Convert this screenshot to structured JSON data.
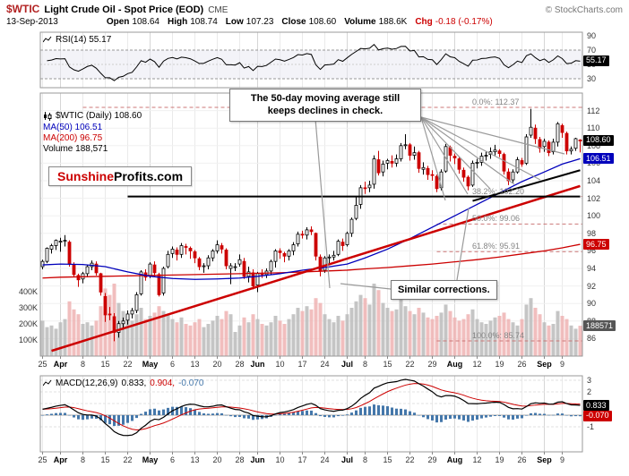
{
  "header": {
    "symbol": "$WTIC",
    "title": "Light Crude Oil - Spot Price (EOD)",
    "exchange": "CME",
    "copyright": "© StockCharts.com",
    "date": "13-Sep-2013",
    "fields": [
      {
        "label": "Open",
        "value": "108.64"
      },
      {
        "label": "High",
        "value": "108.74"
      },
      {
        "label": "Low",
        "value": "107.23"
      },
      {
        "label": "Close",
        "value": "108.60"
      },
      {
        "label": "Volume",
        "value": "188.6K"
      },
      {
        "label": "Chg",
        "value": "-0.18 (-0.17%)",
        "color": "#cc0000"
      }
    ]
  },
  "rsi": {
    "label": "RSI(14) 55.17"
  },
  "main": {
    "legend": {
      "symbol": "$WTIC (Daily) 108.60",
      "ma50": "MA(50) 106.51",
      "ma200": "MA(200) 96.75",
      "volume": "Volume 188,571"
    },
    "watermark": {
      "left": "Sunshine",
      "right": "Profits.com"
    },
    "annotations": {
      "box1_line1": "The 50-day moving average still",
      "box1_line2": "keeps declines in check.",
      "box2": "Similar corrections."
    }
  },
  "macd": {
    "label": "MACD(12,26,9)",
    "v1": "0.833,",
    "v2": "0.904,",
    "v3": "-0.070"
  },
  "colors": {
    "up": "#000000",
    "down": "#cc0000",
    "ma50": "#0000bb",
    "ma200": "#cc0000",
    "histogram": "#4477aa",
    "macd_line": "#000000",
    "signal_line": "#cc0000",
    "tag_close": "#000000",
    "tag_ma50": "#0000bb",
    "tag_ma200": "#cc0000",
    "tag_volume": "#555555",
    "tag_rsi": "#000000",
    "tag_macd": "#000000",
    "tag_hist": "#cc0000"
  },
  "chart_data": {
    "type": "candlestick",
    "symbol": "$WTIC",
    "timeframe": "daily",
    "title": "Light Crude Oil - Spot Price (EOD) CME",
    "price_axis_range": [
      84,
      114
    ],
    "price_ticks": [
      112,
      110,
      108,
      106,
      104,
      102,
      100,
      98,
      96,
      94,
      92,
      90,
      88,
      86
    ],
    "rsi_ticks": [
      90,
      70,
      50,
      30
    ],
    "rsi_band": [
      30,
      70
    ],
    "macd_ticks": [
      3,
      2,
      1,
      0,
      -1
    ],
    "volume_ticks": [
      {
        "label": "400K",
        "v": 400
      },
      {
        "label": "300K",
        "v": 300
      },
      {
        "label": "200K",
        "v": 200
      },
      {
        "label": "100K",
        "v": 100
      }
    ],
    "x_ticks": [
      {
        "i": 0,
        "label": "25"
      },
      {
        "i": 4,
        "label": "Apr"
      },
      {
        "i": 9,
        "label": "8"
      },
      {
        "i": 14,
        "label": "15"
      },
      {
        "i": 19,
        "label": "22"
      },
      {
        "i": 24,
        "label": "May"
      },
      {
        "i": 29,
        "label": "6"
      },
      {
        "i": 34,
        "label": "13"
      },
      {
        "i": 39,
        "label": "20"
      },
      {
        "i": 44,
        "label": "28"
      },
      {
        "i": 48,
        "label": "Jun"
      },
      {
        "i": 53,
        "label": "10"
      },
      {
        "i": 58,
        "label": "17"
      },
      {
        "i": 63,
        "label": "24"
      },
      {
        "i": 68,
        "label": "Jul"
      },
      {
        "i": 72,
        "label": "8"
      },
      {
        "i": 77,
        "label": "15"
      },
      {
        "i": 82,
        "label": "22"
      },
      {
        "i": 87,
        "label": "29"
      },
      {
        "i": 92,
        "label": "Aug"
      },
      {
        "i": 97,
        "label": "12"
      },
      {
        "i": 102,
        "label": "19"
      },
      {
        "i": 107,
        "label": "26"
      },
      {
        "i": 112,
        "label": "Sep"
      },
      {
        "i": 116,
        "label": "9"
      }
    ],
    "candles": [
      [
        94.2,
        95.0,
        93.9,
        94.8
      ],
      [
        94.8,
        96.4,
        94.6,
        96.3
      ],
      [
        96.2,
        96.8,
        95.7,
        96.6
      ],
      [
        96.6,
        97.3,
        96.1,
        97.2
      ],
      [
        97.0,
        97.5,
        95.9,
        97.1
      ],
      [
        97.1,
        97.8,
        96.5,
        97.2
      ],
      [
        97.0,
        97.2,
        94.2,
        94.5
      ],
      [
        94.4,
        94.7,
        93.1,
        93.3
      ],
      [
        93.2,
        93.4,
        91.9,
        92.7
      ],
      [
        92.8,
        93.6,
        92.3,
        93.4
      ],
      [
        93.4,
        94.4,
        93.0,
        94.2
      ],
      [
        94.2,
        94.9,
        93.8,
        94.6
      ],
      [
        94.5,
        94.8,
        93.2,
        93.5
      ],
      [
        93.4,
        93.5,
        90.9,
        91.3
      ],
      [
        90.8,
        91.2,
        87.9,
        88.7
      ],
      [
        88.8,
        89.6,
        88.1,
        88.7
      ],
      [
        88.5,
        88.9,
        85.7,
        86.7
      ],
      [
        86.7,
        88.0,
        86.1,
        87.7
      ],
      [
        87.7,
        88.4,
        87.0,
        88.0
      ],
      [
        88.1,
        89.2,
        87.6,
        88.8
      ],
      [
        88.8,
        89.5,
        88.3,
        89.2
      ],
      [
        89.2,
        91.3,
        88.9,
        91.0
      ],
      [
        91.1,
        93.8,
        90.9,
        93.6
      ],
      [
        93.5,
        93.9,
        92.6,
        93.0
      ],
      [
        93.2,
        94.7,
        92.9,
        94.5
      ],
      [
        94.4,
        94.8,
        93.0,
        93.5
      ],
      [
        93.3,
        93.5,
        90.8,
        91.0
      ],
      [
        91.2,
        94.2,
        90.9,
        94.0
      ],
      [
        94.2,
        96.0,
        94.0,
        95.6
      ],
      [
        95.7,
        96.5,
        95.2,
        96.2
      ],
      [
        96.1,
        96.4,
        94.9,
        95.6
      ],
      [
        95.6,
        96.9,
        95.2,
        96.6
      ],
      [
        96.5,
        96.8,
        95.6,
        96.4
      ],
      [
        96.3,
        96.5,
        95.1,
        96.0
      ],
      [
        95.9,
        96.1,
        94.6,
        95.2
      ],
      [
        95.1,
        95.3,
        93.8,
        94.2
      ],
      [
        94.2,
        94.6,
        93.5,
        94.3
      ],
      [
        94.3,
        95.5,
        93.9,
        95.2
      ],
      [
        95.2,
        96.2,
        94.8,
        96.0
      ],
      [
        96.0,
        97.2,
        95.7,
        96.7
      ],
      [
        96.6,
        96.9,
        95.7,
        96.2
      ],
      [
        96.1,
        96.3,
        93.9,
        94.3
      ],
      [
        94.0,
        94.6,
        92.2,
        94.3
      ],
      [
        94.2,
        94.6,
        93.7,
        94.2
      ],
      [
        94.5,
        95.6,
        94.2,
        95.0
      ],
      [
        94.8,
        95.2,
        92.8,
        93.1
      ],
      [
        93.1,
        94.2,
        92.4,
        93.6
      ],
      [
        93.5,
        93.9,
        91.6,
        92.0
      ],
      [
        92.1,
        93.6,
        91.3,
        93.4
      ],
      [
        93.4,
        93.9,
        92.9,
        93.3
      ],
      [
        93.3,
        94.0,
        92.9,
        93.7
      ],
      [
        93.7,
        95.0,
        93.3,
        94.8
      ],
      [
        94.8,
        96.2,
        94.1,
        96.0
      ],
      [
        96.0,
        96.3,
        95.1,
        95.8
      ],
      [
        95.7,
        95.9,
        94.7,
        95.4
      ],
      [
        95.4,
        96.2,
        94.9,
        96.0
      ],
      [
        96.0,
        97.0,
        95.5,
        96.7
      ],
      [
        96.8,
        98.2,
        96.5,
        97.9
      ],
      [
        97.9,
        98.3,
        97.4,
        97.8
      ],
      [
        97.8,
        98.7,
        97.3,
        98.4
      ],
      [
        98.4,
        98.8,
        97.8,
        98.2
      ],
      [
        98.0,
        98.1,
        94.9,
        95.4
      ],
      [
        95.3,
        95.6,
        93.1,
        93.7
      ],
      [
        93.8,
        95.4,
        93.5,
        95.2
      ],
      [
        95.2,
        95.6,
        94.6,
        95.3
      ],
      [
        95.3,
        96.0,
        94.9,
        95.5
      ],
      [
        95.6,
        97.3,
        95.4,
        97.1
      ],
      [
        97.0,
        97.4,
        96.0,
        96.6
      ],
      [
        96.7,
        98.2,
        96.5,
        98.0
      ],
      [
        98.0,
        99.8,
        97.6,
        99.6
      ],
      [
        99.7,
        102.2,
        99.5,
        101.2
      ],
      [
        101.3,
        103.5,
        100.8,
        103.2
      ],
      [
        103.2,
        103.9,
        102.5,
        103.1
      ],
      [
        103.2,
        104.0,
        102.7,
        103.5
      ],
      [
        103.6,
        106.9,
        103.1,
        106.5
      ],
      [
        106.4,
        107.4,
        104.6,
        104.9
      ],
      [
        105.0,
        106.3,
        104.5,
        105.9
      ],
      [
        106.0,
        106.5,
        105.3,
        106.3
      ],
      [
        106.2,
        106.9,
        105.5,
        106.0
      ],
      [
        106.0,
        107.0,
        105.6,
        106.5
      ],
      [
        106.5,
        108.3,
        106.2,
        108.0
      ],
      [
        108.0,
        109.3,
        107.6,
        108.1
      ],
      [
        108.1,
        108.3,
        106.3,
        106.9
      ],
      [
        106.9,
        107.9,
        106.4,
        107.2
      ],
      [
        107.2,
        107.4,
        104.9,
        105.4
      ],
      [
        105.3,
        106.1,
        104.7,
        105.5
      ],
      [
        105.4,
        105.7,
        104.1,
        104.7
      ],
      [
        104.7,
        105.2,
        104.0,
        104.6
      ],
      [
        104.5,
        104.7,
        102.7,
        103.1
      ],
      [
        103.2,
        105.3,
        102.9,
        105.0
      ],
      [
        105.1,
        108.2,
        104.9,
        107.9
      ],
      [
        107.8,
        108.0,
        106.2,
        106.9
      ],
      [
        106.8,
        107.1,
        105.9,
        106.6
      ],
      [
        106.5,
        106.7,
        104.8,
        105.3
      ],
      [
        105.2,
        105.5,
        103.9,
        104.4
      ],
      [
        104.4,
        104.6,
        102.9,
        103.4
      ],
      [
        103.5,
        106.3,
        103.3,
        106.0
      ],
      [
        106.0,
        106.5,
        105.4,
        106.1
      ],
      [
        106.1,
        107.2,
        105.7,
        106.8
      ],
      [
        106.8,
        107.3,
        106.3,
        106.9
      ],
      [
        107.0,
        107.8,
        106.5,
        107.3
      ],
      [
        107.3,
        108.1,
        106.9,
        107.5
      ],
      [
        107.4,
        107.6,
        106.7,
        107.1
      ],
      [
        107.0,
        107.2,
        104.7,
        105.1
      ],
      [
        105.0,
        105.4,
        103.5,
        104.0
      ],
      [
        104.1,
        105.3,
        103.8,
        105.0
      ],
      [
        105.0,
        106.7,
        104.8,
        106.4
      ],
      [
        106.3,
        106.6,
        105.6,
        105.9
      ],
      [
        106.0,
        109.3,
        105.8,
        109.0
      ],
      [
        109.2,
        112.2,
        108.9,
        110.1
      ],
      [
        110.0,
        110.4,
        108.2,
        108.8
      ],
      [
        108.7,
        109.0,
        107.2,
        107.7
      ],
      [
        107.9,
        108.8,
        107.3,
        108.5
      ],
      [
        108.4,
        108.6,
        106.8,
        107.2
      ],
      [
        107.3,
        108.8,
        107.0,
        108.4
      ],
      [
        108.4,
        110.7,
        107.9,
        110.5
      ],
      [
        110.3,
        110.5,
        108.9,
        109.5
      ],
      [
        109.4,
        109.6,
        107.0,
        107.4
      ],
      [
        107.4,
        107.9,
        107.0,
        107.6
      ],
      [
        107.7,
        108.9,
        107.4,
        108.8
      ],
      [
        108.64,
        108.74,
        107.23,
        108.6
      ]
    ],
    "volumes_k": [
      220,
      180,
      190,
      170,
      210,
      230,
      340,
      290,
      260,
      200,
      210,
      190,
      220,
      310,
      420,
      380,
      450,
      330,
      280,
      240,
      220,
      260,
      300,
      230,
      250,
      270,
      310,
      280,
      260,
      230,
      210,
      240,
      200,
      190,
      210,
      230,
      180,
      200,
      220,
      250,
      230,
      280,
      260,
      150,
      190,
      240,
      210,
      260,
      230,
      200,
      190,
      210,
      250,
      220,
      200,
      230,
      260,
      300,
      280,
      310,
      290,
      360,
      330,
      260,
      230,
      210,
      250,
      220,
      260,
      300,
      340,
      380,
      360,
      320,
      450,
      410,
      330,
      300,
      280,
      290,
      350,
      310,
      280,
      260,
      300,
      270,
      240,
      230,
      250,
      270,
      320,
      280,
      240,
      220,
      230,
      260,
      290,
      230,
      210,
      200,
      220,
      240,
      250,
      270,
      230,
      210,
      190,
      230,
      320,
      360,
      300,
      260,
      210,
      190,
      200,
      280,
      250,
      230,
      190,
      170,
      188.6
    ],
    "ma50_weekly": [
      94.4,
      94.5,
      94.45,
      94.2,
      93.6,
      93.1,
      92.85,
      92.75,
      92.8,
      92.9,
      93.1,
      93.4,
      93.8,
      94.1,
      94.5,
      95.2,
      96.2,
      97.4,
      98.7,
      100.0,
      101.3,
      102.6,
      103.9,
      105.0,
      105.9
    ],
    "ma50_last": 106.51,
    "ma200_weekly": [
      92.9,
      93.0,
      93.05,
      93.1,
      93.15,
      93.2,
      93.25,
      93.3,
      93.35,
      93.4,
      93.45,
      93.5,
      93.6,
      93.7,
      93.8,
      93.95,
      94.1,
      94.3,
      94.5,
      94.75,
      95.0,
      95.3,
      95.65,
      96.0,
      96.35
    ],
    "ma200_last": 96.75,
    "last": {
      "close": 108.6,
      "volume_k": 188.571,
      "rsi": 55.17,
      "macd": 0.833,
      "signal": 0.904,
      "hist": -0.07
    },
    "fib_levels": [
      {
        "label": "0.0%: 112.37",
        "price": 112.37,
        "from_i": 9
      },
      {
        "label": "38.2%: 102.20",
        "price": 102.2,
        "from_i": 88
      },
      {
        "label": "50.0%: 99.06",
        "price": 99.06,
        "from_i": 88
      },
      {
        "label": "61.8%: 95.91",
        "price": 95.91,
        "from_i": 88
      },
      {
        "label": "100.0%: 85.74",
        "price": 85.74,
        "from_i": 88
      }
    ],
    "trendlines": [
      {
        "name": "long-term-rising-support",
        "i1": 2,
        "p1": 84.6,
        "i2": 120,
        "p2": 103.4,
        "color": "#cc0000",
        "width": 2.5
      },
      {
        "name": "horizontal-support",
        "i1": 19,
        "p1": 102.2,
        "i2": 120,
        "p2": 102.2,
        "color": "#000000",
        "width": 2
      },
      {
        "name": "short-term-rising-support",
        "i1": 96,
        "p1": 101.7,
        "i2": 120,
        "p2": 105.2,
        "color": "#000000",
        "width": 2
      }
    ]
  }
}
